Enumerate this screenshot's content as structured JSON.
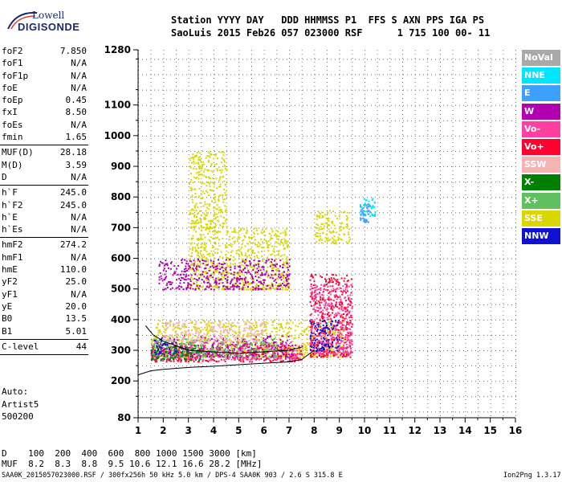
{
  "logo": {
    "line1": "Lowell",
    "line2": "DIGISONDE"
  },
  "header": {
    "line1": "Station YYYY DAY   DDD HHMMSS P1  FFS S AXN PPS IGA PS",
    "line2": "SaoLuis 2015 Feb26 057 023000 RSF      1 715 100 00- 11"
  },
  "params": [
    {
      "name": "foF2",
      "value": "7.850"
    },
    {
      "name": "foF1",
      "value": "N/A"
    },
    {
      "name": "foF1p",
      "value": "N/A"
    },
    {
      "name": "foE",
      "value": "N/A"
    },
    {
      "name": "foEp",
      "value": "0.45"
    },
    {
      "name": "fxI",
      "value": "8.50"
    },
    {
      "name": "foEs",
      "value": "N/A"
    },
    {
      "name": "fmin",
      "value": "1.65"
    },
    {
      "name": "MUF(D)",
      "value": "28.18"
    },
    {
      "name": "M(D)",
      "value": "3.59"
    },
    {
      "name": "D",
      "value": "N/A"
    },
    {
      "name": "h`F",
      "value": "245.0"
    },
    {
      "name": "h`F2",
      "value": "245.0"
    },
    {
      "name": "h`E",
      "value": "N/A"
    },
    {
      "name": "h`Es",
      "value": "N/A"
    },
    {
      "name": "hmF2",
      "value": "274.2"
    },
    {
      "name": "hmF1",
      "value": "N/A"
    },
    {
      "name": "hmE",
      "value": "110.0"
    },
    {
      "name": "yF2",
      "value": "25.0"
    },
    {
      "name": "yF1",
      "value": "N/A"
    },
    {
      "name": "yE",
      "value": "20.0"
    },
    {
      "name": "B0",
      "value": "13.5"
    },
    {
      "name": "B1",
      "value": "5.01"
    },
    {
      "name": "C-level",
      "value": "44"
    }
  ],
  "auto": {
    "line1": "Auto:",
    "line2": "Artist5",
    "line3": "500200"
  },
  "legend": [
    {
      "label": "NoVal",
      "bg": "#a9a9a9",
      "fg": "#ffffff"
    },
    {
      "label": "NNE",
      "bg": "#00e5ff",
      "fg": "#ffffff"
    },
    {
      "label": "E",
      "bg": "#3ca0ff",
      "fg": "#ffffff"
    },
    {
      "label": "W",
      "bg": "#b000b0",
      "fg": "#ffffff"
    },
    {
      "label": "Vo-",
      "bg": "#ff40a0",
      "fg": "#ffffff"
    },
    {
      "label": "Vo+",
      "bg": "#ff0030",
      "fg": "#ffffff"
    },
    {
      "label": "SSW",
      "bg": "#f4b4b4",
      "fg": "#ffffff"
    },
    {
      "label": "X-",
      "bg": "#008000",
      "fg": "#ffffff"
    },
    {
      "label": "X+",
      "bg": "#60c060",
      "fg": "#ffffff"
    },
    {
      "label": "SSE",
      "bg": "#d8d800",
      "fg": "#ffffff"
    },
    {
      "label": "NNW",
      "bg": "#1010d0",
      "fg": "#ffffff"
    }
  ],
  "bottom": {
    "d_line": "D    100  200  400  600  800 1000 1500 3000 [km]",
    "muf_line": "MUF  8.2  8.3  8.8  9.5 10.6 12.1 16.6 28.2 [MHz]",
    "file_line": "SAA0K_2015057023000.RSF / 300fx256h 50 kHz 5.0 km / DPS-4 SAA0K 903 / 2.6 S 315.8 E",
    "version": "Ion2Png 1.3.17"
  },
  "chart_data": {
    "type": "scatter",
    "title": "",
    "xlabel": "",
    "ylabel": "",
    "xlim": [
      1,
      16
    ],
    "ylim": [
      80,
      1280
    ],
    "xticks": [
      1,
      2,
      3,
      4,
      5,
      6,
      7,
      8,
      9,
      10,
      11,
      12,
      13,
      14,
      15,
      16
    ],
    "yticks": [
      80,
      200,
      300,
      400,
      500,
      600,
      700,
      800,
      900,
      1000,
      1100,
      1280
    ],
    "grid": true,
    "legend_position": "right",
    "series": [
      {
        "name": "SSE",
        "color": "#d8d800",
        "clusters": [
          [
            1.5,
            9.2,
            280,
            400
          ],
          [
            3.0,
            7.0,
            500,
            700
          ],
          [
            3.0,
            4.5,
            700,
            950
          ],
          [
            8.0,
            9.4,
            650,
            760
          ]
        ]
      },
      {
        "name": "Vo+",
        "color": "#ff0030",
        "clusters": [
          [
            1.5,
            7.5,
            265,
            320
          ],
          [
            7.8,
            9.5,
            280,
            550
          ]
        ]
      },
      {
        "name": "Vo-",
        "color": "#ff40a0",
        "clusters": [
          [
            1.5,
            7.5,
            270,
            330
          ],
          [
            7.8,
            9.5,
            290,
            520
          ]
        ]
      },
      {
        "name": "W",
        "color": "#b000b0",
        "clusters": [
          [
            1.6,
            7.2,
            280,
            350
          ],
          [
            1.8,
            7.0,
            500,
            600
          ]
        ]
      },
      {
        "name": "X+",
        "color": "#60c060",
        "clusters": [
          [
            1.5,
            6.5,
            280,
            340
          ]
        ]
      },
      {
        "name": "NNW",
        "color": "#1010d0",
        "clusters": [
          [
            1.5,
            2.5,
            290,
            340
          ],
          [
            7.8,
            9.0,
            300,
            400
          ]
        ]
      },
      {
        "name": "NNE",
        "color": "#00e5ff",
        "clusters": [
          [
            9.8,
            10.4,
            740,
            800
          ]
        ]
      },
      {
        "name": "E",
        "color": "#3ca0ff",
        "clusters": [
          [
            9.8,
            10.2,
            720,
            780
          ]
        ]
      },
      {
        "name": "X-",
        "color": "#008000",
        "clusters": [
          [
            1.5,
            3.5,
            270,
            320
          ]
        ]
      },
      {
        "name": "SSW",
        "color": "#f4b4b4",
        "clusters": [
          [
            2.0,
            6.0,
            330,
            400
          ]
        ]
      }
    ],
    "trace": {
      "x": [
        1.0,
        1.5,
        2.0,
        3.0,
        4.0,
        5.0,
        6.0,
        7.0,
        7.5,
        8.0
      ],
      "y": [
        220,
        233,
        238,
        244,
        248,
        253,
        258,
        262,
        270,
        300
      ]
    },
    "trace2": {
      "x": [
        1.3,
        1.6,
        2.0,
        3.0,
        5.0,
        7.0,
        7.5
      ],
      "y": [
        380,
        350,
        330,
        300,
        290,
        300,
        310
      ]
    }
  }
}
